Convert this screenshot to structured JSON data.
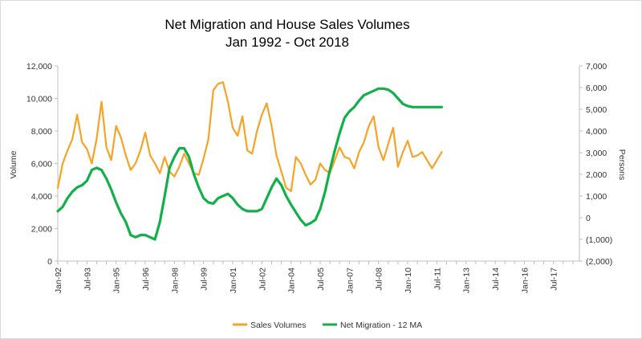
{
  "chart_data": {
    "type": "line",
    "title": "Net Migration and House Sales Volumes",
    "subtitle": "Jan 1992 - Oct 2018",
    "ylabel_left": "Volume",
    "ylabel_right": "Persons",
    "ylim_left": [
      0,
      12000
    ],
    "ylim_right": [
      -2000,
      7000
    ],
    "left_ticks": [
      "0",
      "2,000",
      "4,000",
      "6,000",
      "8,000",
      "10,000",
      "12,000"
    ],
    "right_ticks": [
      "(2,000)",
      "(1,000)",
      "0",
      "1,000",
      "2,000",
      "3,000",
      "4,000",
      "5,000",
      "6,000",
      "7,000"
    ],
    "x_tick_labels": [
      "Jan-92",
      "Jul-93",
      "Jan-95",
      "Jul-96",
      "Jan-98",
      "Jul-99",
      "Jan-01",
      "Jul-02",
      "Jan-04",
      "Jul-05",
      "Jan-07",
      "Jul-08",
      "Jan-10",
      "Jul-11",
      "Jan-13",
      "Jul-14",
      "Jan-16",
      "Jul-17"
    ],
    "grid": false,
    "legend_position": "bottom",
    "series": [
      {
        "name": "Sales Volumes",
        "axis": "left",
        "color": "#F7A325",
        "x_step_months": 3,
        "values": [
          4500,
          6000,
          6800,
          7500,
          9000,
          7300,
          6900,
          6000,
          7500,
          9800,
          7000,
          6200,
          8300,
          7600,
          6500,
          5600,
          6000,
          6800,
          7900,
          6500,
          6000,
          5400,
          6400,
          5500,
          5200,
          5800,
          6600,
          6000,
          5400,
          5300,
          6300,
          7500,
          10500,
          10900,
          11000,
          9800,
          8200,
          7700,
          8900,
          6800,
          6600,
          8000,
          9000,
          9700,
          8300,
          6500,
          5500,
          4500,
          4300,
          6400,
          6000,
          5300,
          4700,
          5000,
          6000,
          5600,
          5400,
          6200,
          7000,
          6400,
          6300,
          5700,
          6700,
          7300,
          8300,
          8900,
          7000,
          6200,
          7200,
          8200,
          5800,
          6700,
          7400,
          6400,
          6500,
          6700,
          6200,
          5700,
          6200,
          6700
        ]
      },
      {
        "name": "Net Migration - 12 MA",
        "axis": "right",
        "color": "#13B04A",
        "x_step_months": 3,
        "values": [
          300,
          500,
          900,
          1200,
          1400,
          1500,
          1700,
          2200,
          2300,
          2200,
          1800,
          1300,
          700,
          200,
          -200,
          -800,
          -900,
          -800,
          -800,
          -900,
          -1000,
          -200,
          1000,
          2300,
          2800,
          3200,
          3200,
          2800,
          2000,
          1400,
          900,
          700,
          650,
          900,
          1000,
          1100,
          900,
          600,
          400,
          300,
          300,
          300,
          400,
          900,
          1400,
          1800,
          1500,
          1000,
          600,
          250,
          -100,
          -350,
          -250,
          -100,
          400,
          1200,
          2200,
          3100,
          3900,
          4600,
          4900,
          5100,
          5400,
          5650,
          5750,
          5850,
          5950,
          5950,
          5900,
          5750,
          5500,
          5250,
          5150,
          5100,
          5100,
          5100,
          5100,
          5100,
          5100,
          5100
        ]
      }
    ]
  },
  "legend": {
    "sales_label": "Sales Volumes",
    "migration_label": "Net Migration - 12 MA"
  }
}
